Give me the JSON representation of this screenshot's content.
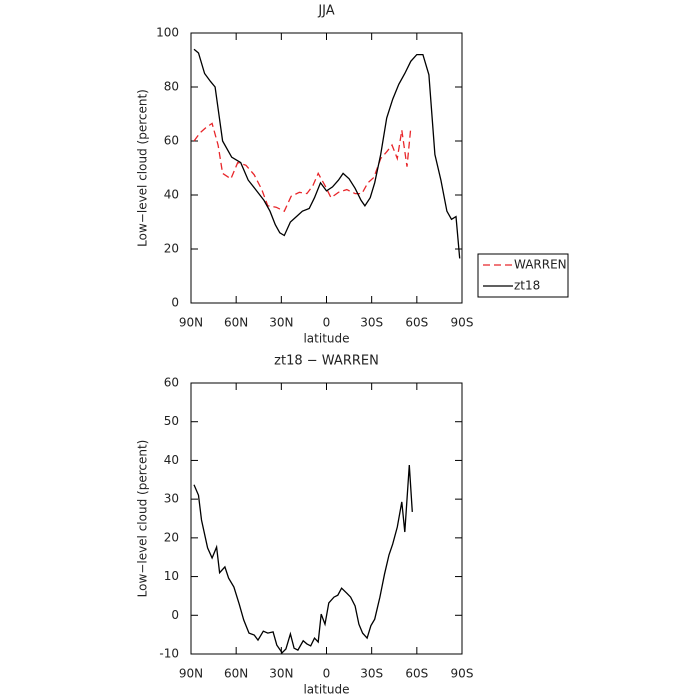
{
  "chart_data": [
    {
      "type": "line",
      "title": "JJA",
      "xlabel": "latitude",
      "ylabel": "Low−level cloud (percent)",
      "xlim": [
        90,
        -90
      ],
      "xticks": [
        {
          "value": 90,
          "label": "90N"
        },
        {
          "value": 60,
          "label": "60N"
        },
        {
          "value": 30,
          "label": "30N"
        },
        0,
        {
          "value": -30,
          "label": "30S"
        },
        {
          "value": -60,
          "label": "60S"
        },
        {
          "value": -90,
          "label": "90S"
        }
      ],
      "ylim": [
        0,
        100
      ],
      "yticks": [
        0,
        20,
        40,
        60,
        80,
        100
      ],
      "legend": "right",
      "series": [
        {
          "name": "WARREN",
          "color": "#e8262a",
          "line_style": "dashed",
          "x": [
            88,
            84,
            80,
            76,
            72,
            69,
            63.5,
            59,
            53.5,
            48,
            43,
            39,
            33.5,
            28,
            23.5,
            18,
            13,
            9,
            5.5,
            1,
            -3,
            -8,
            -13.5,
            -19,
            -23.5,
            -27.5,
            -31.5,
            -36,
            -40,
            -43.5,
            -47,
            -50,
            -53.5,
            -56
          ],
          "values": [
            60,
            63,
            65,
            66.5,
            58.5,
            48,
            46,
            52,
            51,
            47.5,
            42,
            36,
            35.5,
            34,
            39.5,
            41,
            40.5,
            43.5,
            48,
            43.5,
            39,
            41,
            42,
            40.5,
            40.5,
            44.5,
            46.5,
            53.5,
            56,
            58.5,
            53.5,
            64,
            50.5,
            65
          ]
        },
        {
          "name": "zt18",
          "color": "#000000",
          "line_style": "solid",
          "x": [
            88,
            85,
            81,
            77,
            74,
            69,
            63,
            57,
            52,
            47,
            41.5,
            37.5,
            34,
            31,
            28,
            24,
            20,
            16,
            11.5,
            8,
            4,
            0,
            -4,
            -8,
            -11,
            -15,
            -19,
            -23,
            -25.5,
            -29,
            -32,
            -36,
            -40,
            -44,
            -48,
            -52,
            -56,
            -60,
            -64,
            -68,
            -72,
            -76,
            -80,
            -83,
            -86,
            -88.5
          ],
          "values": [
            94,
            92.6,
            85,
            82,
            80,
            60,
            54,
            52,
            45.5,
            42,
            38,
            34,
            29,
            26,
            25,
            30,
            32,
            34,
            35,
            39,
            44.5,
            41.5,
            43,
            45.5,
            48,
            46,
            42.5,
            38,
            36,
            39,
            44.5,
            55,
            68.5,
            75.5,
            81,
            85,
            89.5,
            92,
            92,
            84.5,
            55,
            45.5,
            34,
            31,
            32,
            16.5
          ]
        }
      ]
    },
    {
      "type": "line",
      "title": "zt18 − WARREN",
      "xlabel": "latitude",
      "ylabel": "Low−level cloud (percent)",
      "xlim": [
        90,
        -90
      ],
      "xticks": [
        {
          "value": 90,
          "label": "90N"
        },
        {
          "value": 60,
          "label": "60N"
        },
        {
          "value": 30,
          "label": "30N"
        },
        0,
        {
          "value": -30,
          "label": "30S"
        },
        {
          "value": -60,
          "label": "60S"
        },
        {
          "value": -90,
          "label": "90S"
        }
      ],
      "ylim": [
        -10,
        60
      ],
      "yticks": [
        -10,
        0,
        10,
        20,
        30,
        40,
        50,
        60
      ],
      "series": [
        {
          "color": "#000000",
          "line_style": "solid",
          "x": [
            88,
            85,
            83,
            79,
            76,
            73,
            71,
            67.5,
            65,
            61.5,
            58,
            55,
            51.5,
            48,
            45.5,
            42,
            39,
            35.5,
            33,
            29.5,
            27,
            24,
            21.5,
            19,
            15.5,
            13,
            10.5,
            8,
            5.5,
            3.5,
            1,
            -1.5,
            -5,
            -7.5,
            -10,
            -13.5,
            -16,
            -19,
            -21.5,
            -24,
            -27,
            -29.5,
            -32,
            -35.5,
            -38.5,
            -41.5,
            -44,
            -47,
            -50,
            -52,
            -55,
            -57
          ],
          "values": [
            33.7,
            31,
            24.6,
            17.4,
            14.8,
            17.6,
            11,
            12.5,
            9.6,
            7.3,
            2.9,
            -1.2,
            -4.6,
            -5.1,
            -6.4,
            -4.1,
            -4.6,
            -4.3,
            -7.7,
            -9.7,
            -8.7,
            -4.8,
            -8.5,
            -9,
            -6.6,
            -7.4,
            -7.9,
            -5.9,
            -6.9,
            0.3,
            -2.3,
            3.2,
            4.7,
            5.2,
            7,
            5.7,
            4.7,
            2.4,
            -2.3,
            -4.6,
            -5.9,
            -2.7,
            -1,
            4.7,
            10.6,
            15.6,
            18.4,
            22.8,
            29.3,
            21.5,
            38.8,
            26.7
          ]
        }
      ]
    }
  ]
}
